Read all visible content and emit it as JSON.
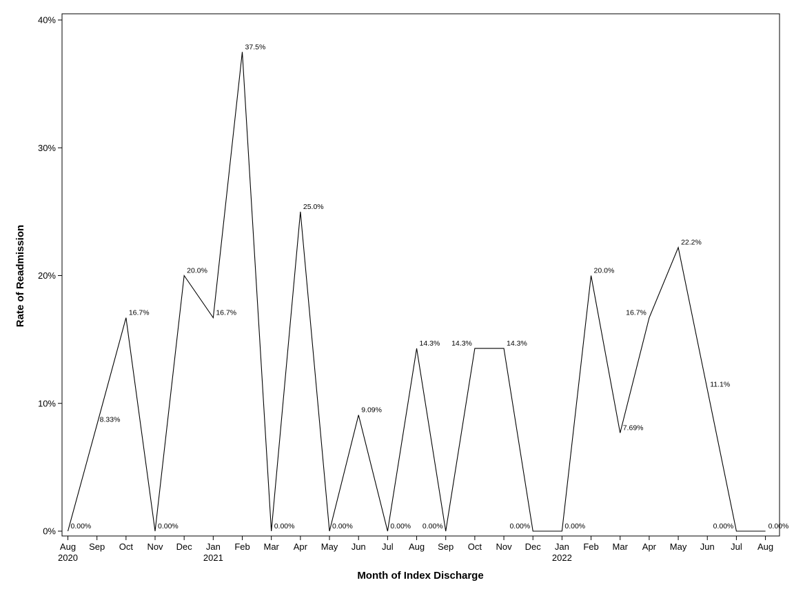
{
  "chart_data": {
    "type": "line",
    "xlabel": "Month of Index Discharge",
    "ylabel": "Rate of Readmission",
    "ylim": [
      0,
      40
    ],
    "yticks": [
      "0%",
      "10%",
      "20%",
      "30%",
      "40%"
    ],
    "grid": false,
    "x": [
      "Aug",
      "Sep",
      "Oct",
      "Nov",
      "Dec",
      "Jan",
      "Feb",
      "Mar",
      "Apr",
      "May",
      "Jun",
      "Jul",
      "Aug",
      "Sep",
      "Oct",
      "Nov",
      "Dec",
      "Jan",
      "Feb",
      "Mar",
      "Apr",
      "May",
      "Jun",
      "Jul",
      "Aug"
    ],
    "year_labels": [
      {
        "index": 0,
        "label": "2020"
      },
      {
        "index": 5,
        "label": "2021"
      },
      {
        "index": 17,
        "label": "2022"
      }
    ],
    "series": [
      {
        "values": [
          0,
          8.33,
          16.7,
          0,
          20.0,
          16.7,
          37.5,
          0,
          25.0,
          0,
          9.09,
          0,
          14.3,
          0,
          14.3,
          14.3,
          0,
          0,
          20.0,
          7.69,
          16.7,
          22.2,
          11.1,
          0,
          0
        ],
        "labels": [
          "0.00%",
          "8.33%",
          "16.7%",
          "0.00%",
          "20.0%",
          "16.7%",
          "37.5%",
          "0.00%",
          "25.0%",
          "0.00%",
          "9.09%",
          "0.00%",
          "14.3%",
          "0.00%",
          "14.3%",
          "14.3%",
          "0.00%",
          "0.00%",
          "20.0%",
          "7.69%",
          "16.7%",
          "22.2%",
          "11.1%",
          "0.00%",
          "0.00%"
        ],
        "color": "#000000"
      }
    ]
  }
}
